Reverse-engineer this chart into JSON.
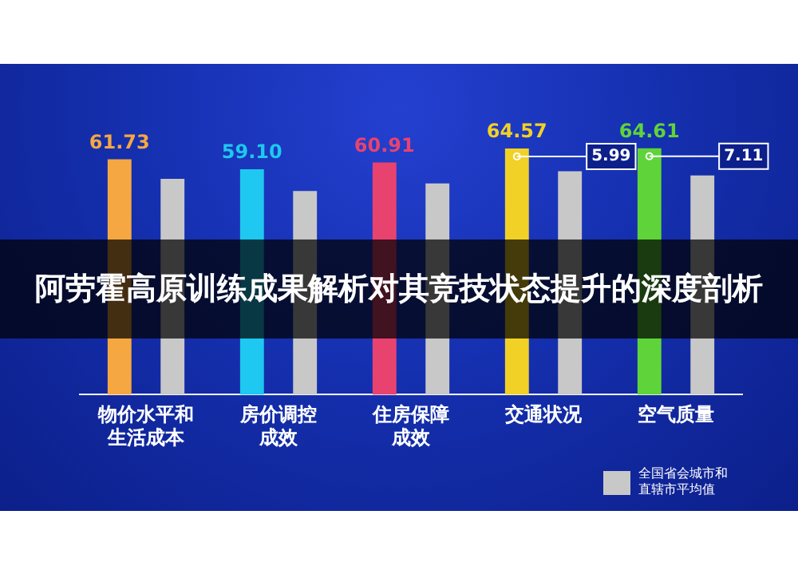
{
  "chart_data": {
    "type": "bar",
    "title": "阿劳霍高原训练成果解析对其竞技状态提升的深度剖析",
    "categories": [
      "物价水平和生活成本",
      "房价调控成效",
      "住房保障成效",
      "交通状况",
      "空气质量"
    ],
    "series": [
      {
        "colors": [
          "#f5a742",
          "#1ec8f0",
          "#e8436f",
          "#f2d126",
          "#5fd43a"
        ],
        "values": [
          61.73,
          59.1,
          60.91,
          64.57,
          64.61
        ],
        "value_labels": [
          "61.73",
          "59.10",
          "60.91",
          "64.57",
          "64.61"
        ]
      },
      {
        "name": "全国省会城市和直辖市平均值",
        "color": "#c8c8c8",
        "values": [
          56.6,
          53.4,
          55.4,
          58.58,
          57.5
        ]
      }
    ],
    "annotations": [
      "5.99",
      "7.11"
    ],
    "legend": "bottom right",
    "grid": false
  }
}
